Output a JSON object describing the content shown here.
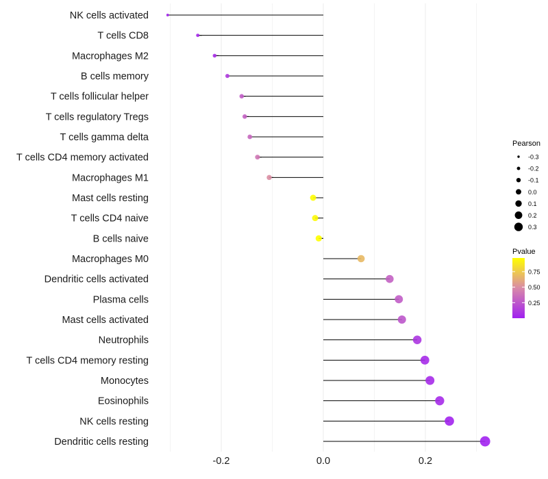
{
  "chart_data": {
    "type": "lollipop",
    "title": "",
    "xlabel": "",
    "ylabel": "",
    "xlim": [
      -0.305,
      0.33
    ],
    "x_ticks": [
      -0.2,
      0.0,
      0.2
    ],
    "x_tick_labels": [
      "-0.2",
      "0.0",
      "0.2"
    ],
    "grid": true,
    "categories": [
      "NK cells activated",
      "T cells CD8",
      "Macrophages M2",
      "B cells memory",
      "T cells follicular helper",
      "T cells regulatory  Tregs",
      "T cells gamma delta",
      "T cells CD4 memory activated",
      "Macrophages M1",
      "Mast cells resting",
      "T cells CD4 naive",
      "B cells naive",
      "Macrophages M0",
      "Dendritic cells activated",
      "Plasma cells",
      "Mast cells activated",
      "Neutrophils",
      "T cells CD4 memory resting",
      "Monocytes",
      "Eosinophils",
      "NK cells resting",
      "Dendritic cells resting"
    ],
    "values": [
      -0.305,
      -0.246,
      -0.213,
      -0.188,
      -0.16,
      -0.154,
      -0.144,
      -0.129,
      -0.106,
      -0.02,
      -0.016,
      -0.009,
      0.074,
      0.13,
      0.148,
      0.154,
      0.184,
      0.199,
      0.209,
      0.228,
      0.247,
      0.317
    ],
    "pvalues": [
      0.02,
      0.04,
      0.06,
      0.12,
      0.28,
      0.3,
      0.33,
      0.4,
      0.5,
      0.96,
      0.95,
      0.97,
      0.68,
      0.3,
      0.28,
      0.25,
      0.1,
      0.05,
      0.05,
      0.05,
      0.02,
      0.01
    ],
    "size_legend": {
      "title": "Pearson",
      "values": [
        -0.3,
        -0.2,
        -0.1,
        0.0,
        0.1,
        0.2,
        0.3
      ],
      "labels": [
        "-0.3",
        "-0.2",
        "-0.1",
        "0.0",
        "0.1",
        "0.2",
        "0.3"
      ]
    },
    "color_legend": {
      "title": "Pvalue",
      "ticks": [
        0.25,
        0.5,
        0.75
      ],
      "labels": [
        "0.25",
        "0.50",
        "0.75"
      ],
      "range": [
        0.0,
        0.97
      ]
    },
    "colors": {
      "low": "#A020F0",
      "mid": "#D98AA8",
      "high": "#FFFF00",
      "segment": "#000000",
      "grid": "#EBEBEB"
    },
    "legend_position": "right"
  }
}
